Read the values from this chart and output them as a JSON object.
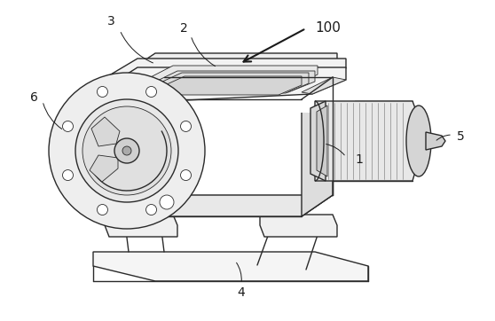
{
  "bg_color": "#ffffff",
  "line_color": "#2a2a2a",
  "label_color": "#1a1a1a",
  "fig_width": 5.58,
  "fig_height": 3.62,
  "dpi": 100,
  "label_fs": 10,
  "lw_main": 1.0,
  "lw_thin": 0.6,
  "lw_label": 0.7
}
